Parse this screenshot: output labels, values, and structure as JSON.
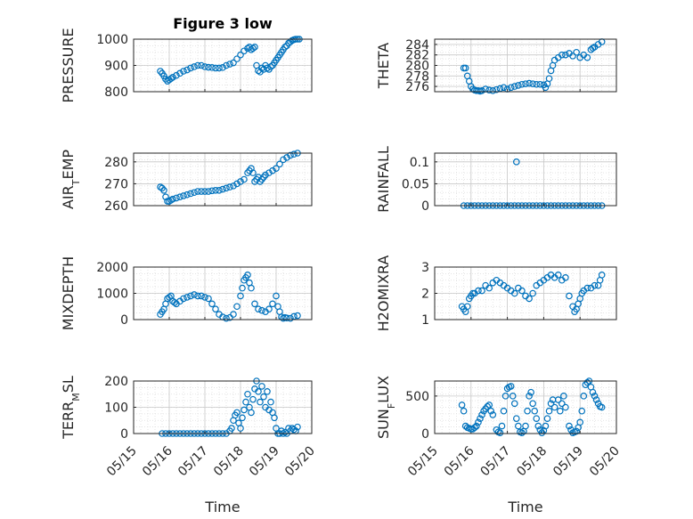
{
  "figure_title": "Figure 3 low",
  "xlabel": "Time",
  "x_ticks": [
    "05/15",
    "05/16",
    "05/17",
    "05/18",
    "05/19",
    "05/20"
  ],
  "marker_color": "#0072bd",
  "chart_data": [
    {
      "type": "scatter",
      "ylabel": "PRESSURE",
      "title": "Figure 3 low",
      "xlim": [
        "05/15",
        "05/20"
      ],
      "ylim": [
        800,
        1000
      ],
      "y_ticks": [
        "800",
        "900",
        "1000"
      ],
      "grid": true,
      "x": [
        5.75,
        5.8,
        5.85,
        5.9,
        5.95,
        6.0,
        6.05,
        6.1,
        6.2,
        6.3,
        6.4,
        6.5,
        6.6,
        6.7,
        6.8,
        6.9,
        7.0,
        7.1,
        7.2,
        7.3,
        7.4,
        7.5,
        7.6,
        7.7,
        7.8,
        7.9,
        8.0,
        8.1,
        8.2,
        8.25,
        8.3,
        8.35,
        8.4,
        8.45,
        8.5,
        8.55,
        8.6,
        8.65,
        8.7,
        8.75,
        8.8,
        8.85,
        8.9,
        8.95,
        9.0,
        9.05,
        9.1,
        9.15,
        9.2,
        9.25,
        9.3,
        9.35,
        9.4,
        9.45,
        9.5,
        9.55,
        9.6,
        9.65
      ],
      "y": [
        878,
        870,
        860,
        848,
        840,
        845,
        850,
        855,
        862,
        870,
        878,
        883,
        890,
        895,
        900,
        900,
        895,
        893,
        892,
        890,
        890,
        892,
        900,
        905,
        910,
        925,
        940,
        955,
        965,
        970,
        960,
        965,
        970,
        900,
        880,
        875,
        890,
        885,
        900,
        890,
        885,
        895,
        900,
        910,
        920,
        930,
        940,
        950,
        960,
        970,
        975,
        985,
        990,
        995,
        998,
        1000,
        1000,
        1000
      ]
    },
    {
      "type": "scatter",
      "ylabel": "THETA",
      "xlim": [
        "05/15",
        "05/20"
      ],
      "ylim": [
        275,
        285
      ],
      "y_ticks": [
        "276",
        "278",
        "280",
        "282",
        "284"
      ],
      "grid": true,
      "x": [
        5.8,
        5.85,
        5.9,
        5.95,
        6.0,
        6.05,
        6.1,
        6.15,
        6.2,
        6.25,
        6.3,
        6.4,
        6.5,
        6.6,
        6.7,
        6.8,
        6.9,
        7.0,
        7.1,
        7.2,
        7.3,
        7.4,
        7.5,
        7.6,
        7.7,
        7.8,
        7.9,
        8.0,
        8.05,
        8.1,
        8.15,
        8.2,
        8.25,
        8.3,
        8.4,
        8.5,
        8.6,
        8.7,
        8.8,
        8.9,
        9.0,
        9.1,
        9.2,
        9.3,
        9.35,
        9.4,
        9.5,
        9.6
      ],
      "y": [
        279.5,
        279.5,
        278.0,
        277.0,
        276.0,
        275.5,
        275.3,
        275.2,
        275.2,
        275.1,
        275.2,
        275.5,
        275.3,
        275.2,
        275.4,
        275.6,
        275.8,
        275.5,
        275.8,
        276.0,
        276.2,
        276.4,
        276.5,
        276.6,
        276.5,
        276.4,
        276.4,
        276.3,
        275.8,
        276.5,
        277.5,
        279.0,
        280.0,
        281.0,
        281.5,
        282.0,
        282.0,
        282.3,
        281.8,
        282.5,
        281.5,
        282.0,
        281.5,
        283.0,
        283.3,
        283.5,
        284.0,
        284.5
      ]
    },
    {
      "type": "scatter",
      "ylabel": "AIR_TEMP",
      "xlim": [
        "05/15",
        "05/20"
      ],
      "ylim": [
        260,
        284
      ],
      "y_ticks": [
        "260",
        "270",
        "280"
      ],
      "grid": true,
      "x": [
        5.75,
        5.8,
        5.85,
        5.9,
        5.95,
        6.0,
        6.05,
        6.1,
        6.2,
        6.3,
        6.4,
        6.5,
        6.6,
        6.7,
        6.8,
        6.9,
        7.0,
        7.1,
        7.2,
        7.3,
        7.4,
        7.5,
        7.6,
        7.7,
        7.8,
        7.9,
        8.0,
        8.1,
        8.2,
        8.25,
        8.3,
        8.35,
        8.4,
        8.45,
        8.5,
        8.55,
        8.6,
        8.65,
        8.7,
        8.8,
        8.9,
        9.0,
        9.1,
        9.2,
        9.3,
        9.4,
        9.5,
        9.6
      ],
      "y": [
        268.5,
        268,
        267,
        264,
        262,
        262,
        262.5,
        263,
        263.5,
        264,
        264.5,
        265,
        265.5,
        266,
        266.5,
        266.5,
        266.5,
        266.5,
        266.8,
        267,
        267,
        267.5,
        268,
        268.5,
        269,
        270,
        271,
        272,
        275,
        276,
        277,
        275,
        271,
        272,
        273,
        271,
        272,
        273,
        274,
        275,
        276,
        277,
        279,
        281,
        282,
        283,
        283.5,
        284
      ]
    },
    {
      "type": "scatter",
      "ylabel": "RAINFALL",
      "xlim": [
        "05/15",
        "05/20"
      ],
      "ylim": [
        0,
        0.12
      ],
      "y_ticks": [
        "0",
        "0.05",
        "0.1"
      ],
      "grid": true,
      "x": [
        5.8,
        5.9,
        6.0,
        6.1,
        6.2,
        6.3,
        6.4,
        6.5,
        6.6,
        6.7,
        6.8,
        6.9,
        7.0,
        7.1,
        7.2,
        7.3,
        7.4,
        7.5,
        7.6,
        7.7,
        7.8,
        7.9,
        8.0,
        8.1,
        8.2,
        8.3,
        8.4,
        8.5,
        8.6,
        8.7,
        8.8,
        8.9,
        9.0,
        9.1,
        9.2,
        9.3,
        9.4,
        9.5,
        9.6,
        7.25
      ],
      "y": [
        0,
        0,
        0,
        0,
        0,
        0,
        0,
        0,
        0,
        0,
        0,
        0,
        0,
        0,
        0,
        0,
        0,
        0,
        0,
        0,
        0,
        0,
        0,
        0,
        0,
        0,
        0,
        0,
        0,
        0,
        0,
        0,
        0,
        0,
        0,
        0,
        0,
        0,
        0,
        0.1
      ]
    },
    {
      "type": "scatter",
      "ylabel": "MIXDEPTH",
      "xlim": [
        "05/15",
        "05/20"
      ],
      "ylim": [
        0,
        2000
      ],
      "y_ticks": [
        "0",
        "1000",
        "2000"
      ],
      "grid": true,
      "x": [
        5.75,
        5.8,
        5.85,
        5.9,
        5.95,
        6.0,
        6.05,
        6.1,
        6.15,
        6.2,
        6.3,
        6.4,
        6.5,
        6.6,
        6.7,
        6.8,
        6.9,
        7.0,
        7.1,
        7.2,
        7.3,
        7.4,
        7.5,
        7.6,
        7.7,
        7.8,
        7.9,
        8.0,
        8.05,
        8.1,
        8.15,
        8.2,
        8.25,
        8.3,
        8.4,
        8.5,
        8.6,
        8.7,
        8.8,
        8.9,
        9.0,
        9.05,
        9.1,
        9.15,
        9.2,
        9.25,
        9.3,
        9.4,
        9.5,
        9.6
      ],
      "y": [
        200,
        300,
        400,
        600,
        800,
        850,
        900,
        700,
        650,
        600,
        700,
        800,
        850,
        900,
        950,
        900,
        900,
        850,
        800,
        600,
        400,
        200,
        100,
        50,
        80,
        200,
        500,
        900,
        1200,
        1500,
        1600,
        1700,
        1400,
        1200,
        600,
        400,
        350,
        300,
        400,
        600,
        900,
        500,
        300,
        100,
        50,
        80,
        60,
        50,
        120,
        150
      ]
    },
    {
      "type": "scatter",
      "ylabel": "H2OMIXRA",
      "xlim": [
        "05/15",
        "05/20"
      ],
      "ylim": [
        1,
        3
      ],
      "y_ticks": [
        "1",
        "2",
        "3"
      ],
      "grid": true,
      "x": [
        5.75,
        5.8,
        5.85,
        5.9,
        5.95,
        6.0,
        6.05,
        6.1,
        6.2,
        6.3,
        6.4,
        6.5,
        6.6,
        6.7,
        6.8,
        6.9,
        7.0,
        7.1,
        7.2,
        7.3,
        7.4,
        7.5,
        7.6,
        7.7,
        7.8,
        7.9,
        8.0,
        8.1,
        8.2,
        8.3,
        8.4,
        8.5,
        8.6,
        8.7,
        8.8,
        8.85,
        8.9,
        8.95,
        9.0,
        9.05,
        9.1,
        9.2,
        9.3,
        9.4,
        9.5,
        9.55,
        9.6
      ],
      "y": [
        1.5,
        1.4,
        1.3,
        1.5,
        1.8,
        1.9,
        2.0,
        2.0,
        2.1,
        2.1,
        2.3,
        2.2,
        2.4,
        2.5,
        2.4,
        2.3,
        2.2,
        2.1,
        2.0,
        2.2,
        2.1,
        1.9,
        1.8,
        2.0,
        2.3,
        2.4,
        2.5,
        2.6,
        2.7,
        2.6,
        2.7,
        2.5,
        2.6,
        1.9,
        1.5,
        1.3,
        1.4,
        1.6,
        1.8,
        2.0,
        2.1,
        2.2,
        2.2,
        2.3,
        2.3,
        2.5,
        2.7
      ]
    },
    {
      "type": "scatter",
      "ylabel": "TERR_MSL",
      "xlim": [
        "05/15",
        "05/20"
      ],
      "ylim": [
        0,
        200
      ],
      "y_ticks": [
        "0",
        "100",
        "200"
      ],
      "grid": true,
      "x": [
        5.8,
        5.9,
        6.0,
        6.1,
        6.2,
        6.3,
        6.4,
        6.5,
        6.6,
        6.7,
        6.8,
        6.9,
        7.0,
        7.1,
        7.2,
        7.3,
        7.4,
        7.5,
        7.6,
        7.7,
        7.75,
        7.8,
        7.85,
        7.9,
        7.95,
        8.0,
        8.05,
        8.1,
        8.15,
        8.2,
        8.25,
        8.3,
        8.35,
        8.4,
        8.45,
        8.5,
        8.55,
        8.6,
        8.65,
        8.7,
        8.75,
        8.8,
        8.85,
        8.9,
        8.95,
        9.0,
        9.05,
        9.1,
        9.15,
        9.2,
        9.25,
        9.3,
        9.35,
        9.4,
        9.45,
        9.5,
        9.55,
        9.6
      ],
      "y": [
        0,
        0,
        0,
        0,
        0,
        0,
        0,
        0,
        0,
        0,
        0,
        0,
        0,
        0,
        0,
        0,
        0,
        0,
        0,
        10,
        20,
        50,
        70,
        80,
        40,
        20,
        60,
        90,
        120,
        150,
        100,
        80,
        130,
        170,
        200,
        160,
        120,
        180,
        140,
        100,
        160,
        90,
        120,
        80,
        60,
        20,
        0,
        0,
        10,
        0,
        5,
        0,
        20,
        10,
        20,
        15,
        10,
        25
      ]
    },
    {
      "type": "scatter",
      "ylabel": "SUN_FLUX",
      "xlim": [
        "05/15",
        "05/20"
      ],
      "ylim": [
        0,
        700
      ],
      "y_ticks": [
        "0",
        "500"
      ],
      "grid": true,
      "x": [
        5.75,
        5.8,
        5.85,
        5.9,
        5.95,
        6.0,
        6.05,
        6.1,
        6.15,
        6.2,
        6.25,
        6.3,
        6.35,
        6.4,
        6.45,
        6.5,
        6.55,
        6.6,
        6.7,
        6.75,
        6.8,
        6.85,
        6.9,
        6.95,
        7.0,
        7.05,
        7.1,
        7.15,
        7.2,
        7.25,
        7.3,
        7.35,
        7.4,
        7.45,
        7.5,
        7.55,
        7.6,
        7.65,
        7.7,
        7.75,
        7.8,
        7.85,
        7.9,
        7.95,
        8.0,
        8.05,
        8.1,
        8.15,
        8.2,
        8.25,
        8.3,
        8.4,
        8.45,
        8.5,
        8.55,
        8.6,
        8.7,
        8.75,
        8.8,
        8.85,
        8.9,
        8.95,
        9.0,
        9.05,
        9.1,
        9.15,
        9.2,
        9.25,
        9.3,
        9.35,
        9.4,
        9.45,
        9.5,
        9.55,
        9.6
      ],
      "y": [
        380,
        300,
        100,
        80,
        70,
        60,
        60,
        80,
        100,
        150,
        200,
        250,
        300,
        330,
        360,
        380,
        300,
        250,
        50,
        20,
        10,
        100,
        300,
        500,
        600,
        620,
        630,
        500,
        400,
        200,
        100,
        20,
        10,
        30,
        100,
        300,
        500,
        550,
        400,
        300,
        200,
        100,
        50,
        10,
        40,
        100,
        200,
        300,
        400,
        450,
        350,
        450,
        300,
        400,
        500,
        350,
        100,
        50,
        10,
        20,
        30,
        80,
        150,
        300,
        500,
        650,
        680,
        700,
        620,
        550,
        500,
        450,
        400,
        360,
        350
      ]
    }
  ]
}
